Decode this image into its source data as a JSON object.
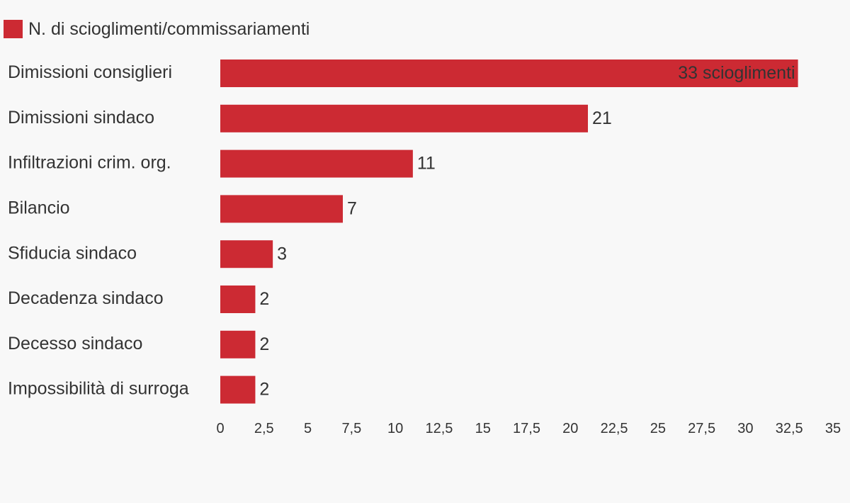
{
  "chart_data": {
    "type": "bar",
    "orientation": "horizontal",
    "categories": [
      "Dimissioni consiglieri",
      "Dimissioni sindaco",
      "Infiltrazioni crim. org.",
      "Bilancio",
      "Sfiducia sindaco",
      "Decadenza sindaco",
      "Decesso sindaco",
      "Impossibilità di surroga"
    ],
    "series": [
      {
        "name": "N. di scioglimenti/commissariamenti",
        "values": [
          33,
          21,
          11,
          7,
          3,
          2,
          2,
          2
        ],
        "color": "#cc2a33"
      }
    ],
    "data_labels": [
      "33 scioglimenti",
      "21",
      "11",
      "7",
      "3",
      "2",
      "2",
      "2"
    ],
    "xlim": [
      0,
      35
    ],
    "xticks": [
      "0",
      "2,5",
      "5",
      "7,5",
      "10",
      "12,5",
      "15",
      "17,5",
      "20",
      "22,5",
      "25",
      "27,5",
      "30",
      "32,5",
      "35"
    ],
    "legend": "top-left",
    "grid": false
  }
}
